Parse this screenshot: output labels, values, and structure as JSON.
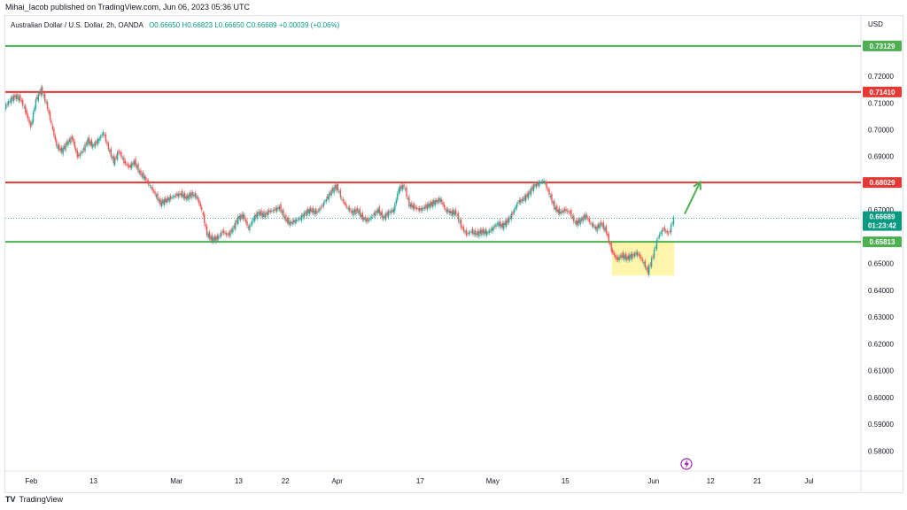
{
  "header": {
    "publisher_line": "Mihai_Iacob published on TradingView.com, Jun 06, 2023 05:36 UTC",
    "symbol": "Australian Dollar / U.S. Dollar, 2h, OANDA",
    "ohlc": "O0.66650  H0.66823  L0.66650  C0.66689  +0.00039 (+0.06%)"
  },
  "footer": {
    "logo": "TV",
    "text": "TradingView"
  },
  "chart_data": {
    "type": "candlestick",
    "currency_label": "USD",
    "ylim": [
      0.5725,
      0.7425
    ],
    "y_ticks": [
      {
        "value": 0.72,
        "label": "0.72000"
      },
      {
        "value": 0.71,
        "label": "0.71000"
      },
      {
        "value": 0.7,
        "label": "0.70000"
      },
      {
        "value": 0.69,
        "label": "0.69000"
      },
      {
        "value": 0.67,
        "label": "0.67000"
      },
      {
        "value": 0.65,
        "label": "0.65000"
      },
      {
        "value": 0.64,
        "label": "0.64000"
      },
      {
        "value": 0.63,
        "label": "0.63000"
      },
      {
        "value": 0.62,
        "label": "0.62000"
      },
      {
        "value": 0.61,
        "label": "0.61000"
      },
      {
        "value": 0.6,
        "label": "0.60000"
      },
      {
        "value": 0.59,
        "label": "0.59000"
      },
      {
        "value": 0.58,
        "label": "0.58000"
      }
    ],
    "x_ticks": [
      {
        "date": "2023-02-01",
        "label": "Feb"
      },
      {
        "date": "2023-02-13",
        "label": "13"
      },
      {
        "date": "2023-03-01",
        "label": "Mar"
      },
      {
        "date": "2023-03-13",
        "label": "13"
      },
      {
        "date": "2023-03-22",
        "label": "22"
      },
      {
        "date": "2023-04-01",
        "label": "Apr"
      },
      {
        "date": "2023-04-17",
        "label": "17"
      },
      {
        "date": "2023-05-01",
        "label": "May"
      },
      {
        "date": "2023-05-15",
        "label": "15"
      },
      {
        "date": "2023-06-01",
        "label": "Jun"
      },
      {
        "date": "2023-06-12",
        "label": "12"
      },
      {
        "date": "2023-06-21",
        "label": "21"
      },
      {
        "date": "2023-07-01",
        "label": "Jul"
      }
    ],
    "horizontal_levels": [
      {
        "value": 0.73129,
        "label": "0.73129",
        "color": "#4caf50"
      },
      {
        "value": 0.7141,
        "label": "0.71410",
        "color": "#e53935"
      },
      {
        "value": 0.68029,
        "label": "0.68029",
        "color": "#e53935"
      },
      {
        "value": 0.65813,
        "label": "0.65813",
        "color": "#4caf50"
      }
    ],
    "last_price": {
      "value": 0.66689,
      "label": "0.66689",
      "countdown": "01:23:42",
      "color": "#089981"
    },
    "highlight_box": {
      "x_start": "2023-05-24",
      "x_end": "2023-06-05",
      "y_low": 0.6455,
      "y_high": 0.6585,
      "color": "#fff59d"
    },
    "arrow": {
      "x_start": "2023-06-07",
      "y_start": 0.6685,
      "x_end": "2023-06-10",
      "y_end": 0.6805,
      "color": "#4caf50"
    },
    "price_path": [
      [
        "2023-01-27",
        0.7085
      ],
      [
        "2023-01-28",
        0.711
      ],
      [
        "2023-01-29",
        0.7125
      ],
      [
        "2023-01-30",
        0.7115
      ],
      [
        "2023-01-31",
        0.707
      ],
      [
        "2023-02-01",
        0.701
      ],
      [
        "2023-02-02",
        0.711
      ],
      [
        "2023-02-03",
        0.715
      ],
      [
        "2023-02-04",
        0.71
      ],
      [
        "2023-02-05",
        0.702
      ],
      [
        "2023-02-06",
        0.694
      ],
      [
        "2023-02-07",
        0.692
      ],
      [
        "2023-02-08",
        0.695
      ],
      [
        "2023-02-09",
        0.697
      ],
      [
        "2023-02-10",
        0.69
      ],
      [
        "2023-02-11",
        0.692
      ],
      [
        "2023-02-12",
        0.696
      ],
      [
        "2023-02-13",
        0.694
      ],
      [
        "2023-02-14",
        0.696
      ],
      [
        "2023-02-15",
        0.699
      ],
      [
        "2023-02-16",
        0.693
      ],
      [
        "2023-02-17",
        0.688
      ],
      [
        "2023-02-18",
        0.692
      ],
      [
        "2023-02-19",
        0.688
      ],
      [
        "2023-02-20",
        0.686
      ],
      [
        "2023-02-21",
        0.688
      ],
      [
        "2023-02-22",
        0.684
      ],
      [
        "2023-02-23",
        0.682
      ],
      [
        "2023-02-24",
        0.679
      ],
      [
        "2023-02-25",
        0.676
      ],
      [
        "2023-02-26",
        0.6725
      ],
      [
        "2023-02-27",
        0.6735
      ],
      [
        "2023-02-28",
        0.6745
      ],
      [
        "2023-03-01",
        0.6755
      ],
      [
        "2023-03-02",
        0.676
      ],
      [
        "2023-03-03",
        0.6745
      ],
      [
        "2023-03-04",
        0.676
      ],
      [
        "2023-03-05",
        0.675
      ],
      [
        "2023-03-06",
        0.67
      ],
      [
        "2023-03-07",
        0.661
      ],
      [
        "2023-03-08",
        0.659
      ],
      [
        "2023-03-09",
        0.6595
      ],
      [
        "2023-03-10",
        0.662
      ],
      [
        "2023-03-11",
        0.6605
      ],
      [
        "2023-03-12",
        0.663
      ],
      [
        "2023-03-13",
        0.667
      ],
      [
        "2023-03-14",
        0.668
      ],
      [
        "2023-03-15",
        0.663
      ],
      [
        "2023-03-16",
        0.667
      ],
      [
        "2023-03-17",
        0.669
      ],
      [
        "2023-03-18",
        0.668
      ],
      [
        "2023-03-19",
        0.6695
      ],
      [
        "2023-03-20",
        0.67
      ],
      [
        "2023-03-21",
        0.671
      ],
      [
        "2023-03-22",
        0.667
      ],
      [
        "2023-03-23",
        0.665
      ],
      [
        "2023-03-24",
        0.666
      ],
      [
        "2023-03-25",
        0.667
      ],
      [
        "2023-03-26",
        0.669
      ],
      [
        "2023-03-27",
        0.67
      ],
      [
        "2023-03-28",
        0.669
      ],
      [
        "2023-03-29",
        0.671
      ],
      [
        "2023-03-30",
        0.674
      ],
      [
        "2023-03-31",
        0.677
      ],
      [
        "2023-04-01",
        0.679
      ],
      [
        "2023-04-02",
        0.674
      ],
      [
        "2023-04-03",
        0.671
      ],
      [
        "2023-04-04",
        0.669
      ],
      [
        "2023-04-05",
        0.67
      ],
      [
        "2023-04-06",
        0.667
      ],
      [
        "2023-04-07",
        0.666
      ],
      [
        "2023-04-08",
        0.668
      ],
      [
        "2023-04-09",
        0.67
      ],
      [
        "2023-04-10",
        0.667
      ],
      [
        "2023-04-11",
        0.669
      ],
      [
        "2023-04-12",
        0.67
      ],
      [
        "2023-04-13",
        0.678
      ],
      [
        "2023-04-14",
        0.679
      ],
      [
        "2023-04-15",
        0.672
      ],
      [
        "2023-04-16",
        0.671
      ],
      [
        "2023-04-17",
        0.67
      ],
      [
        "2023-04-18",
        0.671
      ],
      [
        "2023-04-19",
        0.672
      ],
      [
        "2023-04-20",
        0.673
      ],
      [
        "2023-04-21",
        0.674
      ],
      [
        "2023-04-22",
        0.67
      ],
      [
        "2023-04-23",
        0.669
      ],
      [
        "2023-04-24",
        0.669
      ],
      [
        "2023-04-25",
        0.664
      ],
      [
        "2023-04-26",
        0.661
      ],
      [
        "2023-04-27",
        0.662
      ],
      [
        "2023-04-28",
        0.661
      ],
      [
        "2023-04-29",
        0.662
      ],
      [
        "2023-04-30",
        0.6615
      ],
      [
        "2023-05-01",
        0.663
      ],
      [
        "2023-05-02",
        0.665
      ],
      [
        "2023-05-03",
        0.664
      ],
      [
        "2023-05-04",
        0.666
      ],
      [
        "2023-05-05",
        0.669
      ],
      [
        "2023-05-06",
        0.673
      ],
      [
        "2023-05-07",
        0.674
      ],
      [
        "2023-05-08",
        0.676
      ],
      [
        "2023-05-09",
        0.679
      ],
      [
        "2023-05-10",
        0.68
      ],
      [
        "2023-05-11",
        0.681
      ],
      [
        "2023-05-12",
        0.676
      ],
      [
        "2023-05-13",
        0.671
      ],
      [
        "2023-05-14",
        0.669
      ],
      [
        "2023-05-15",
        0.67
      ],
      [
        "2023-05-16",
        0.669
      ],
      [
        "2023-05-17",
        0.665
      ],
      [
        "2023-05-18",
        0.666
      ],
      [
        "2023-05-19",
        0.668
      ],
      [
        "2023-05-20",
        0.665
      ],
      [
        "2023-05-21",
        0.663
      ],
      [
        "2023-05-22",
        0.665
      ],
      [
        "2023-05-23",
        0.662
      ],
      [
        "2023-05-24",
        0.655
      ],
      [
        "2023-05-25",
        0.6515
      ],
      [
        "2023-05-26",
        0.653
      ],
      [
        "2023-05-27",
        0.652
      ],
      [
        "2023-05-28",
        0.653
      ],
      [
        "2023-05-29",
        0.654
      ],
      [
        "2023-05-30",
        0.651
      ],
      [
        "2023-05-31",
        0.647
      ],
      [
        "2023-06-01",
        0.653
      ],
      [
        "2023-06-02",
        0.66
      ],
      [
        "2023-06-03",
        0.663
      ],
      [
        "2023-06-04",
        0.661
      ],
      [
        "2023-06-05",
        0.6669
      ]
    ]
  }
}
